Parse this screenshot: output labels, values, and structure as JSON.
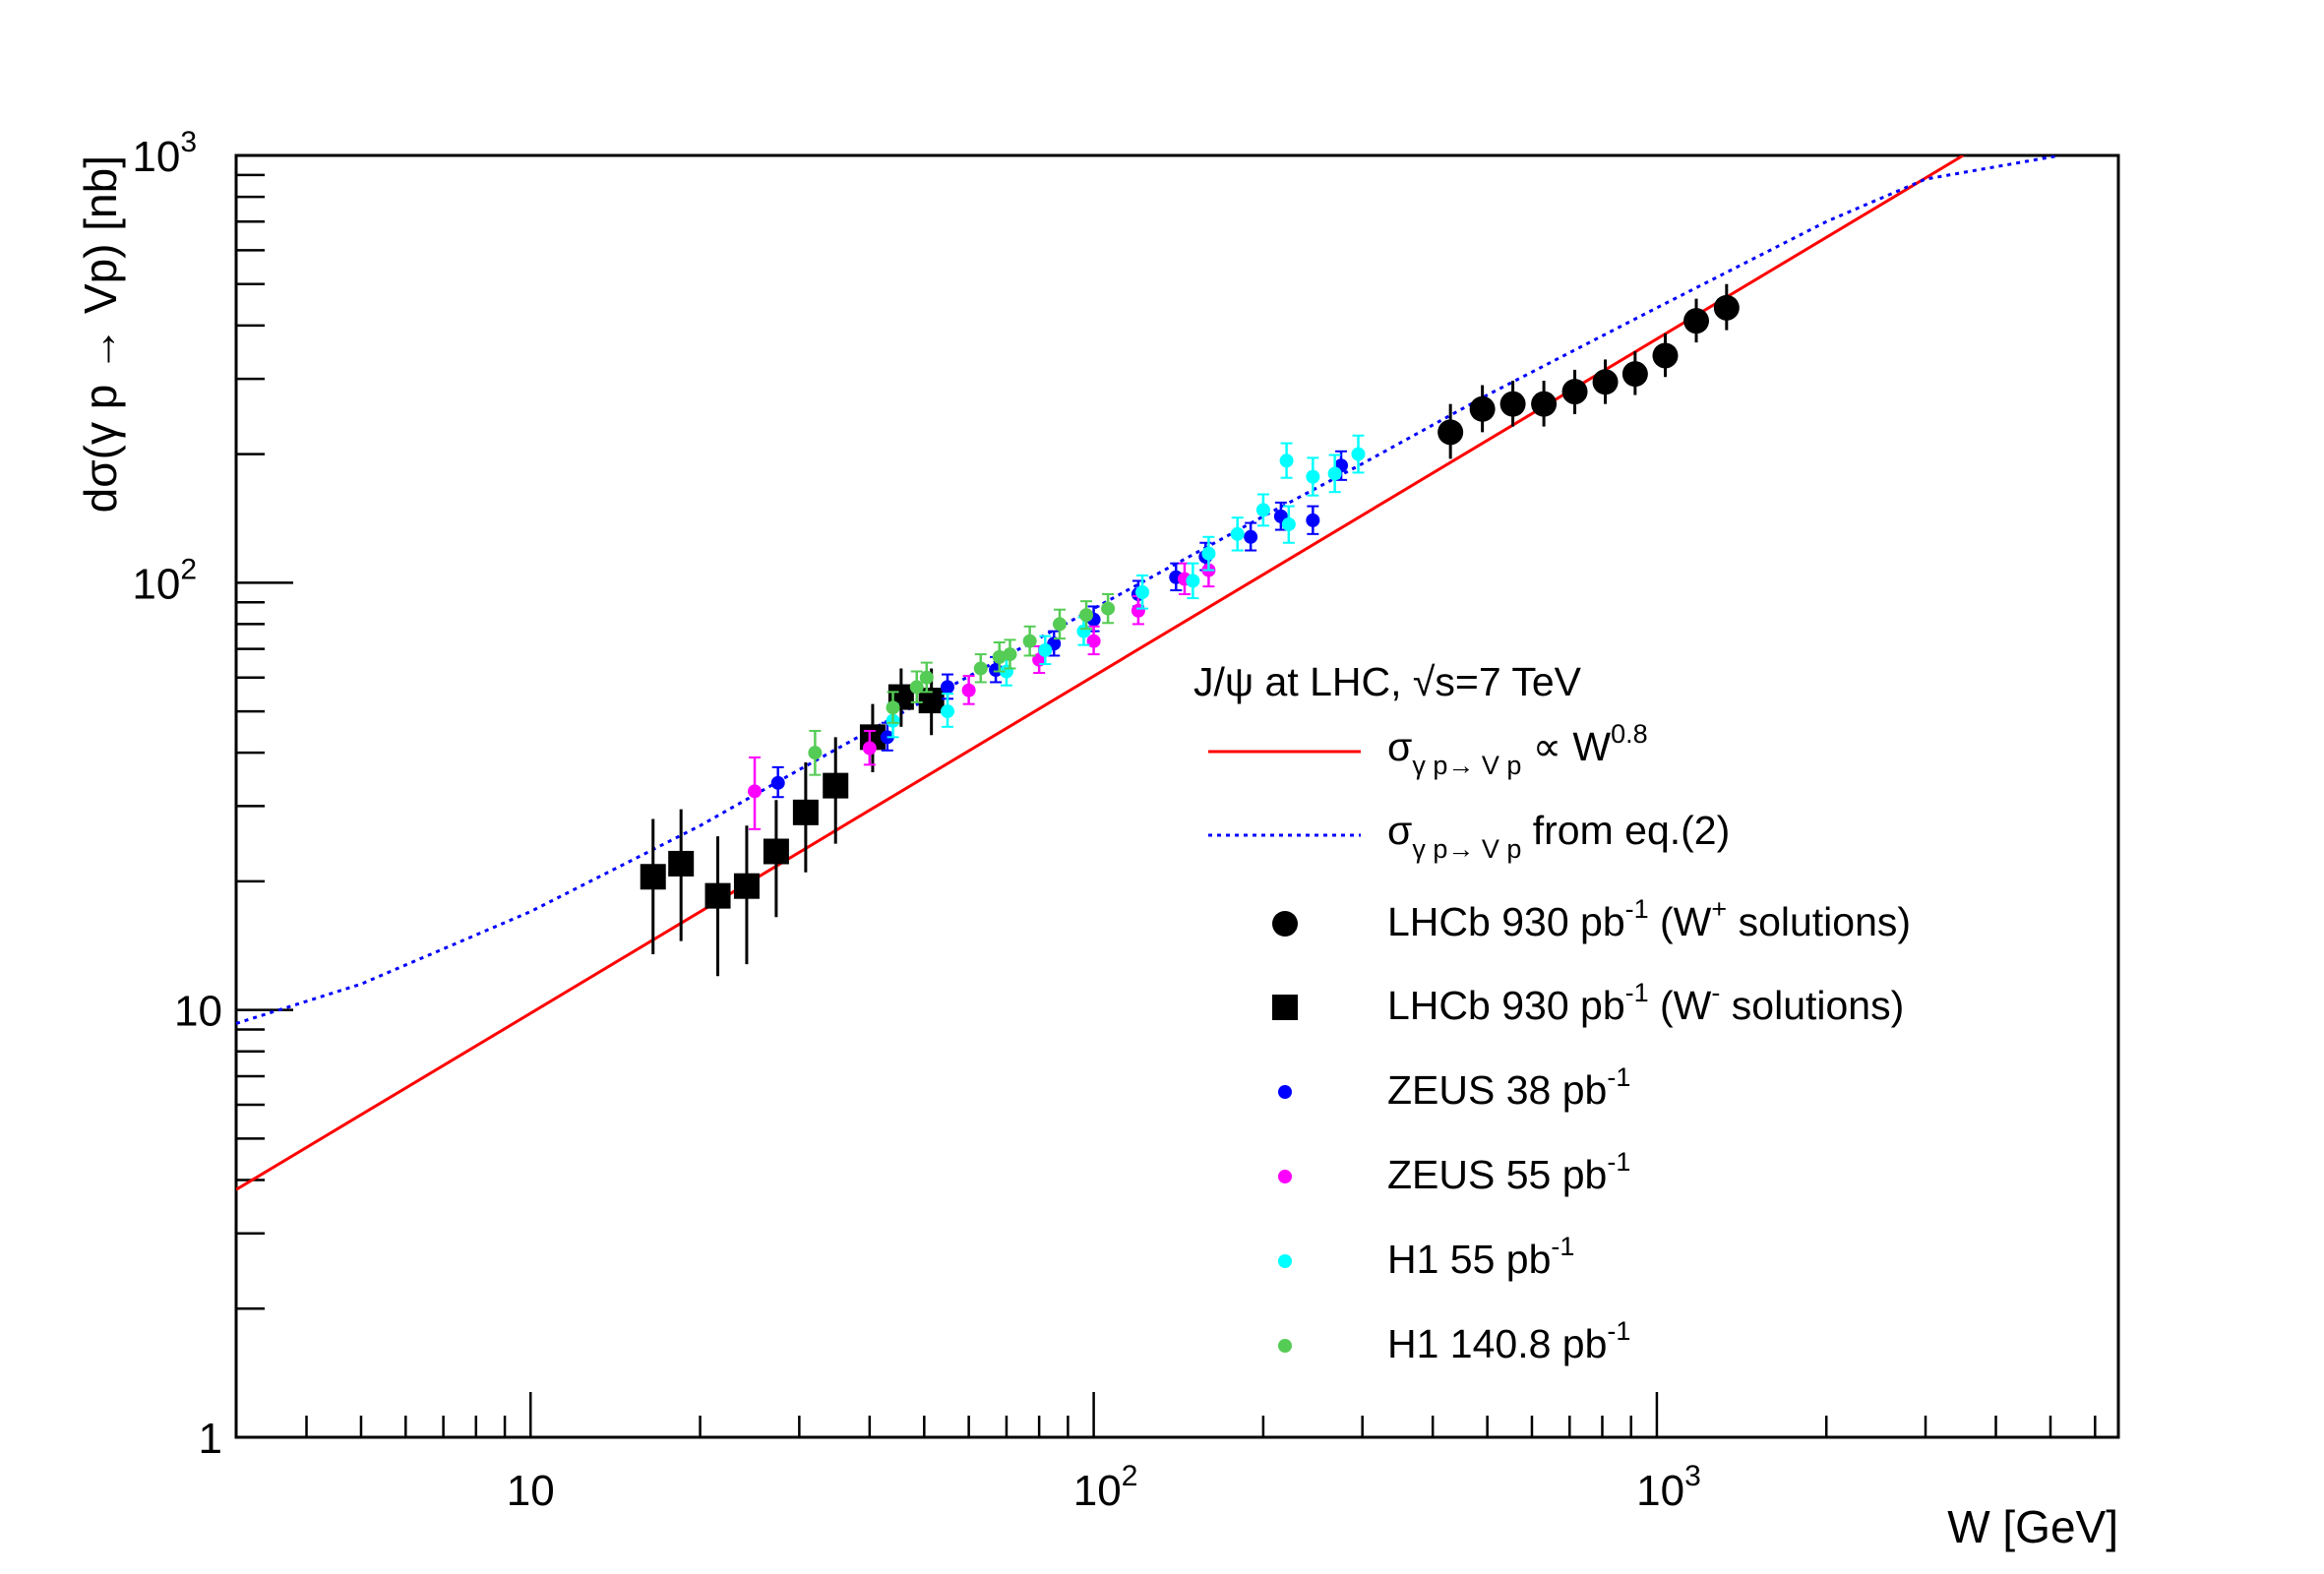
{
  "chart_data": {
    "type": "scatter",
    "xlabel": "W [GeV]",
    "ylabel": "dσ(γ p → Vp) [nb]",
    "xscale": "log",
    "yscale": "log",
    "xlim": [
      3.0,
      6600
    ],
    "ylim": [
      1,
      1000
    ],
    "x_ticks": [
      {
        "value": 10,
        "base": "10",
        "exp": ""
      },
      {
        "value": 100,
        "base": "10",
        "exp": "2"
      },
      {
        "value": 1000,
        "base": "10",
        "exp": "3"
      }
    ],
    "y_ticks": [
      {
        "value": 1,
        "base": "1",
        "exp": ""
      },
      {
        "value": 10,
        "base": "10",
        "exp": ""
      },
      {
        "value": 100,
        "base": "10",
        "exp": "2"
      },
      {
        "value": 1000,
        "base": "10",
        "exp": "3"
      }
    ],
    "grid": false,
    "legend_position": "right-center",
    "legend": {
      "header": {
        "pre": "J/ψ at LHC, ",
        "sqrt": "√",
        "post": "s=7 TeV"
      },
      "entries": [
        {
          "id": "fit",
          "marker": "line",
          "color": "#ff0000",
          "sigma": "σ",
          "sub": "γ p→ V p",
          "text": " ∝ W",
          "sup": "0.8",
          "text2": ""
        },
        {
          "id": "eq2",
          "marker": "dotted-line",
          "color": "#0000ff",
          "sigma": "σ",
          "sub": "γ p→ V p",
          "text": " from eq.(2)",
          "sup": "",
          "text2": ""
        },
        {
          "id": "lhcb_wp",
          "marker": "circle",
          "color": "#000000",
          "text": "LHCb 930 pb",
          "sup": "-1",
          "text2": " (W",
          "sup2": "+",
          "text3": " solutions)"
        },
        {
          "id": "lhcb_wm",
          "marker": "square",
          "color": "#000000",
          "text": "LHCb 930 pb",
          "sup": "-1",
          "text2": " (W",
          "sup2": "-",
          "text3": " solutions)"
        },
        {
          "id": "zeus38",
          "marker": "small-circle",
          "color": "#0000ff",
          "text": "ZEUS 38 pb",
          "sup": "-1",
          "text2": ""
        },
        {
          "id": "zeus55",
          "marker": "small-circle",
          "color": "#ff00ff",
          "text": "ZEUS 55 pb",
          "sup": "-1",
          "text2": ""
        },
        {
          "id": "h1_55",
          "marker": "small-circle",
          "color": "#00ffff",
          "text": "H1 55 pb",
          "sup": "-1",
          "text2": ""
        },
        {
          "id": "h1_140",
          "marker": "small-circle",
          "color": "#55cc55",
          "text": "H1 140.8 pb",
          "sup": "-1",
          "text2": ""
        }
      ]
    },
    "series": [
      {
        "id": "lhcb_wp",
        "marker": "circle",
        "color": "#000000",
        "points": [
          {
            "x": 430,
            "y": 225,
            "lo": 195,
            "hi": 262
          },
          {
            "x": 490,
            "y": 255,
            "lo": 225,
            "hi": 290
          },
          {
            "x": 555,
            "y": 262,
            "lo": 232,
            "hi": 297
          },
          {
            "x": 630,
            "y": 262,
            "lo": 232,
            "hi": 297
          },
          {
            "x": 715,
            "y": 280,
            "lo": 248,
            "hi": 315
          },
          {
            "x": 810,
            "y": 295,
            "lo": 262,
            "hi": 333
          },
          {
            "x": 915,
            "y": 308,
            "lo": 275,
            "hi": 348
          },
          {
            "x": 1035,
            "y": 340,
            "lo": 303,
            "hi": 383
          },
          {
            "x": 1175,
            "y": 410,
            "lo": 365,
            "hi": 462
          },
          {
            "x": 1330,
            "y": 440,
            "lo": 390,
            "hi": 500
          }
        ]
      },
      {
        "id": "lhcb_wm",
        "marker": "square",
        "color": "#000000",
        "points": [
          {
            "x": 16.5,
            "y": 20.5,
            "lo": 13.5,
            "hi": 28
          },
          {
            "x": 18.5,
            "y": 22,
            "lo": 14.5,
            "hi": 29.5
          },
          {
            "x": 21.5,
            "y": 18.5,
            "lo": 12,
            "hi": 25.5
          },
          {
            "x": 24.2,
            "y": 19.5,
            "lo": 12.8,
            "hi": 27
          },
          {
            "x": 27.3,
            "y": 23.5,
            "lo": 16.5,
            "hi": 31
          },
          {
            "x": 30.8,
            "y": 29,
            "lo": 21,
            "hi": 38
          },
          {
            "x": 34.8,
            "y": 33.5,
            "lo": 24.5,
            "hi": 43.5
          },
          {
            "x": 40.5,
            "y": 43.5,
            "lo": 36,
            "hi": 52
          },
          {
            "x": 45.5,
            "y": 54,
            "lo": 46,
            "hi": 63
          },
          {
            "x": 51.5,
            "y": 53,
            "lo": 44,
            "hi": 63
          }
        ]
      },
      {
        "id": "zeus38",
        "marker": "small-circle",
        "color": "#0000ff",
        "points": [
          {
            "x": 27.5,
            "y": 34,
            "lo": 31.5,
            "hi": 37
          },
          {
            "x": 43,
            "y": 43.5,
            "lo": 40.5,
            "hi": 47
          },
          {
            "x": 55,
            "y": 57,
            "lo": 53.5,
            "hi": 61
          },
          {
            "x": 67,
            "y": 62.5,
            "lo": 58.5,
            "hi": 67
          },
          {
            "x": 85,
            "y": 72,
            "lo": 67.5,
            "hi": 77
          },
          {
            "x": 100,
            "y": 82,
            "lo": 77,
            "hi": 88
          },
          {
            "x": 120,
            "y": 94,
            "lo": 88,
            "hi": 101
          },
          {
            "x": 140,
            "y": 103,
            "lo": 96,
            "hi": 111
          },
          {
            "x": 158,
            "y": 115,
            "lo": 107,
            "hi": 124
          },
          {
            "x": 190,
            "y": 128,
            "lo": 119,
            "hi": 138
          },
          {
            "x": 215,
            "y": 143,
            "lo": 133,
            "hi": 154
          },
          {
            "x": 245,
            "y": 140,
            "lo": 130,
            "hi": 151
          },
          {
            "x": 275,
            "y": 188,
            "lo": 174,
            "hi": 203
          }
        ]
      },
      {
        "id": "zeus55",
        "marker": "small-circle",
        "color": "#ff00ff",
        "points": [
          {
            "x": 25,
            "y": 32.5,
            "lo": 26.5,
            "hi": 39
          },
          {
            "x": 40,
            "y": 41,
            "lo": 37.5,
            "hi": 45
          },
          {
            "x": 60,
            "y": 56,
            "lo": 52,
            "hi": 60.5
          },
          {
            "x": 80,
            "y": 66,
            "lo": 61.5,
            "hi": 71
          },
          {
            "x": 100,
            "y": 73,
            "lo": 68,
            "hi": 79
          },
          {
            "x": 120,
            "y": 86,
            "lo": 80,
            "hi": 93
          },
          {
            "x": 145,
            "y": 102,
            "lo": 94,
            "hi": 111
          },
          {
            "x": 160,
            "y": 107,
            "lo": 98,
            "hi": 117
          }
        ]
      },
      {
        "id": "h1_55",
        "marker": "small-circle",
        "color": "#00ffff",
        "points": [
          {
            "x": 44,
            "y": 47.5,
            "lo": 43.5,
            "hi": 52
          },
          {
            "x": 55,
            "y": 50,
            "lo": 46,
            "hi": 55
          },
          {
            "x": 70,
            "y": 62,
            "lo": 57.5,
            "hi": 67
          },
          {
            "x": 82,
            "y": 69.5,
            "lo": 64.5,
            "hi": 75
          },
          {
            "x": 96,
            "y": 77,
            "lo": 71.5,
            "hi": 83
          },
          {
            "x": 122,
            "y": 95,
            "lo": 87,
            "hi": 104
          },
          {
            "x": 150,
            "y": 101,
            "lo": 92,
            "hi": 111
          },
          {
            "x": 160,
            "y": 117,
            "lo": 107,
            "hi": 128
          },
          {
            "x": 180,
            "y": 130,
            "lo": 119,
            "hi": 142
          },
          {
            "x": 200,
            "y": 148,
            "lo": 136,
            "hi": 161
          },
          {
            "x": 220,
            "y": 193,
            "lo": 176,
            "hi": 212
          },
          {
            "x": 222,
            "y": 137,
            "lo": 124,
            "hi": 151
          },
          {
            "x": 245,
            "y": 177,
            "lo": 160,
            "hi": 196
          },
          {
            "x": 268,
            "y": 180,
            "lo": 163,
            "hi": 199
          },
          {
            "x": 295,
            "y": 200,
            "lo": 181,
            "hi": 221
          }
        ]
      },
      {
        "id": "h1_140",
        "marker": "small-circle",
        "color": "#55cc55",
        "points": [
          {
            "x": 32,
            "y": 40,
            "lo": 35.5,
            "hi": 45
          },
          {
            "x": 44,
            "y": 51,
            "lo": 47,
            "hi": 55.5
          },
          {
            "x": 48.5,
            "y": 57,
            "lo": 52.5,
            "hi": 62
          },
          {
            "x": 50.5,
            "y": 60,
            "lo": 55.5,
            "hi": 65
          },
          {
            "x": 63,
            "y": 63,
            "lo": 58.5,
            "hi": 68
          },
          {
            "x": 68,
            "y": 67,
            "lo": 62,
            "hi": 72.5
          },
          {
            "x": 71,
            "y": 68,
            "lo": 63,
            "hi": 73.5
          },
          {
            "x": 77,
            "y": 73,
            "lo": 67.5,
            "hi": 79
          },
          {
            "x": 87,
            "y": 80,
            "lo": 74,
            "hi": 86.5
          },
          {
            "x": 97,
            "y": 84,
            "lo": 78,
            "hi": 90.5
          },
          {
            "x": 106,
            "y": 87,
            "lo": 80.5,
            "hi": 94
          }
        ]
      }
    ],
    "curves": [
      {
        "id": "fit",
        "style": "solid",
        "color": "#ff0000",
        "points": [
          [
            3.0,
            3.8
          ],
          [
            3500,
            1000
          ]
        ]
      },
      {
        "id": "eq2",
        "style": "dotted",
        "color": "#0000ff",
        "points": [
          [
            3.0,
            9.3
          ],
          [
            5,
            11.5
          ],
          [
            10,
            17
          ],
          [
            20,
            27
          ],
          [
            30,
            36.5
          ],
          [
            50,
            53
          ],
          [
            100,
            87
          ],
          [
            200,
            143
          ],
          [
            300,
            190
          ],
          [
            500,
            275
          ],
          [
            1000,
            440
          ],
          [
            2000,
            700
          ],
          [
            3000,
            880
          ],
          [
            5200,
            1000
          ]
        ]
      }
    ]
  }
}
